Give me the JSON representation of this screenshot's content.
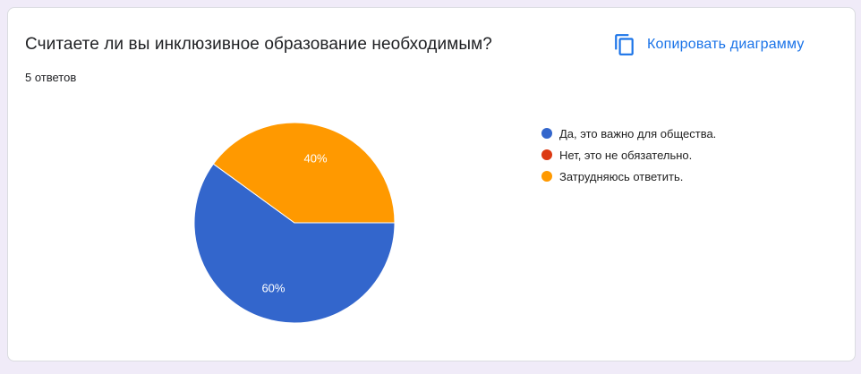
{
  "question": {
    "title": "Считаете ли вы инклюзивное образование необходимым?",
    "response_count": "5 ответов"
  },
  "toolbar": {
    "copy_label": "Копировать диаграмму",
    "copy_icon": "copy-icon"
  },
  "chart_data": {
    "type": "pie",
    "categories": [
      "Да, это важно для общества.",
      "Нет, это не обязательно.",
      "Затрудняюсь ответить."
    ],
    "values": [
      60,
      0,
      40
    ],
    "labels": [
      "60%",
      "",
      "40%"
    ],
    "colors": [
      "#3366cc",
      "#dc3912",
      "#ff9900"
    ],
    "legend_position": "right",
    "title": "Считаете ли вы инклюзивное образование необходимым?"
  }
}
